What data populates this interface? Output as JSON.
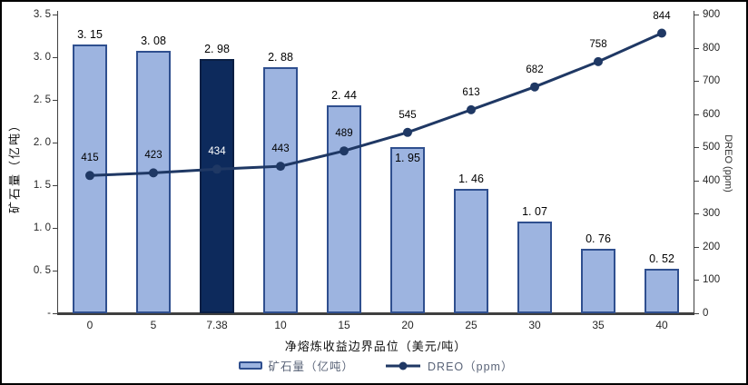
{
  "chart_data": {
    "type": "bar",
    "subtype": "bar-line-combo",
    "title": "",
    "categories": [
      "0",
      "5",
      "7.38",
      "10",
      "15",
      "20",
      "25",
      "30",
      "35",
      "40"
    ],
    "series": [
      {
        "name": "矿石量（亿吨）",
        "type": "bar",
        "axis": "left",
        "values": [
          3.15,
          3.08,
          2.98,
          2.88,
          2.44,
          1.95,
          1.46,
          1.07,
          0.76,
          0.52
        ],
        "labels": [
          "3. 15",
          "3. 08",
          "2. 98",
          "2. 88",
          "2. 44",
          "1. 95",
          "1. 46",
          "1. 07",
          "0. 76",
          "0. 52"
        ],
        "highlight_index": 2,
        "inside_label_indices": [
          5
        ]
      },
      {
        "name": "DREO（ppm）",
        "type": "line",
        "axis": "right",
        "values": [
          415,
          423,
          434,
          443,
          489,
          545,
          613,
          682,
          758,
          844
        ],
        "labels": [
          "415",
          "423",
          "434",
          "443",
          "489",
          "545",
          "613",
          "682",
          "758",
          "844"
        ],
        "white_label_indices": [
          2
        ]
      }
    ],
    "xlabel": "净熔炼收益边界品位（美元/吨）",
    "ylabel_left": "矿石量（亿吨）",
    "ylabel_right": "DREO (ppm)",
    "y_left": {
      "min": 0,
      "max": 3.5,
      "tick_step": 0.5,
      "tick_labels": [
        "3. 5",
        "3. 0",
        "2. 5",
        "2. 0",
        "1. 5",
        "1. 0",
        "0. 5",
        "-"
      ]
    },
    "y_right": {
      "min": 0,
      "max": 900,
      "tick_step": 100,
      "tick_labels": [
        "900",
        "800",
        "700",
        "600",
        "500",
        "400",
        "300",
        "200",
        "100",
        "0"
      ]
    },
    "grid": false,
    "legend": {
      "position": "bottom",
      "items": [
        {
          "label": "矿石量（亿吨）",
          "swatch": "bar"
        },
        {
          "label": "DREO（ppm）",
          "swatch": "line"
        }
      ]
    },
    "colors": {
      "bar_fill": "#9DB4E0",
      "bar_border": "#2F4F8F",
      "bar_highlight": "#0D2A5C",
      "bar_highlight_border": "#0A1F44",
      "line": "#1F3864",
      "marker": "#1F3864",
      "value_label": "#000000",
      "value_label_on_dark": "#FFFFFF",
      "axis_text": "#262626",
      "axis_line": "#404040",
      "legend_text": "#5a6478"
    }
  }
}
